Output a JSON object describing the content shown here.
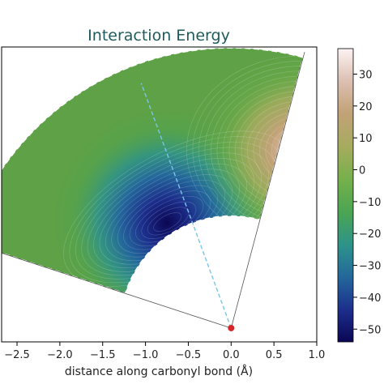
{
  "chart_data": {
    "type": "heatmap",
    "title": "Interaction Energy",
    "xlabel": "distance along carbonyl bond (Å)",
    "ylabel": "",
    "xlim": [
      -2.68,
      1.0
    ],
    "ylim": [
      0.0,
      3.42
    ],
    "x_ticks": [
      -2.5,
      -2.0,
      -1.5,
      -1.0,
      -0.5,
      0.0,
      0.5,
      1.0
    ],
    "x_tick_labels": [
      "−2.5",
      "−2.0",
      "−1.5",
      "−1.0",
      "−0.5",
      "0.0",
      "0.5",
      "1.0"
    ],
    "colorbar": {
      "min": -54,
      "max": 38,
      "ticks": [
        30,
        20,
        10,
        0,
        -10,
        -20,
        -30,
        -40,
        -50
      ],
      "tick_labels": [
        "30",
        "20",
        "10",
        "0",
        "−10",
        "−20",
        "−30",
        "−40",
        "−50"
      ],
      "colors": [
        "#0b0654",
        "#1c2f8c",
        "#23679b",
        "#2d938a",
        "#4aa553",
        "#74b04b",
        "#a4ac5d",
        "#c2a277",
        "#dcc0b2",
        "#fcf3f3"
      ]
    },
    "sector": {
      "origin": [
        0.0,
        0.16
      ],
      "angle_range_deg": [
        75,
        162
      ],
      "radius_range": [
        1.3,
        3.25
      ]
    },
    "reference_lines": [
      {
        "style": "dashed",
        "color": "#79c6e8",
        "from": [
          0.0,
          0.16
        ],
        "to": [
          -1.05,
          3.0
        ]
      }
    ],
    "points": [
      {
        "x": 0.0,
        "y": 0.16,
        "color": "#d62728"
      }
    ],
    "features": [
      {
        "kind": "minimum",
        "x": -0.75,
        "y": 1.38,
        "value": -54
      },
      {
        "kind": "maximum",
        "x": 0.72,
        "y": 2.22,
        "value": 35
      }
    ]
  }
}
